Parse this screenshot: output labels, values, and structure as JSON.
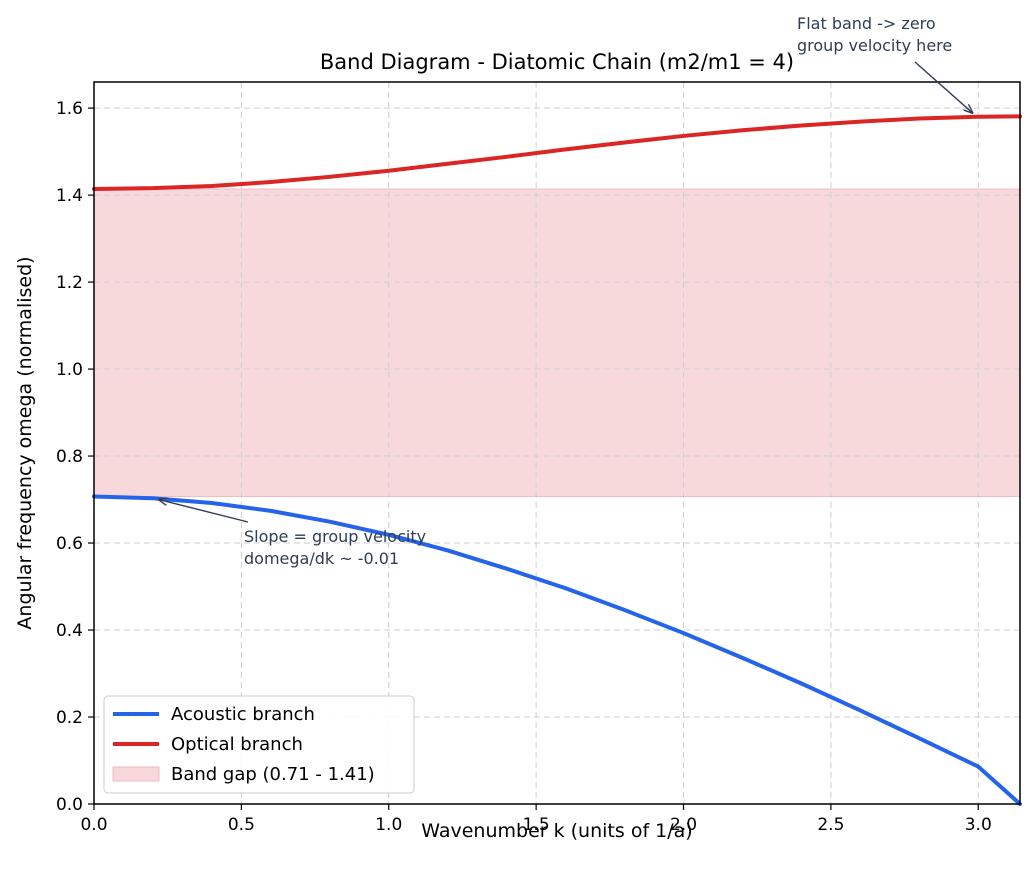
{
  "chart_data": {
    "type": "line",
    "title": "Band Diagram - Diatomic Chain  (m2/m1 = 4)",
    "xlabel": "Wavenumber k  (units of 1/a)",
    "ylabel": "Angular frequency omega  (normalised)",
    "xlim": [
      0,
      3.1416
    ],
    "ylim": [
      0,
      1.66
    ],
    "xticks": [
      "0.0",
      "0.5",
      "1.0",
      "1.5",
      "2.0",
      "2.5",
      "3.0"
    ],
    "yticks": [
      "0.0",
      "0.2",
      "0.4",
      "0.6",
      "0.8",
      "1.0",
      "1.2",
      "1.4",
      "1.6"
    ],
    "grid": true,
    "legend_position": "lower-left",
    "series": [
      {
        "name": "Acoustic branch",
        "color": "#2563eb",
        "x": [
          0.0,
          0.2,
          0.4,
          0.6,
          0.8,
          1.0,
          1.2,
          1.4,
          1.6,
          1.8,
          2.0,
          2.2,
          2.4,
          2.6,
          2.8,
          3.0,
          3.1416
        ],
        "y": [
          0.707,
          0.703,
          0.692,
          0.674,
          0.649,
          0.619,
          0.583,
          0.541,
          0.496,
          0.446,
          0.393,
          0.336,
          0.277,
          0.215,
          0.151,
          0.086,
          0.0
        ]
      },
      {
        "name": "Optical branch",
        "color": "#dc2626",
        "x": [
          0.0,
          0.2,
          0.4,
          0.6,
          0.8,
          1.0,
          1.2,
          1.4,
          1.6,
          1.8,
          2.0,
          2.2,
          2.4,
          2.6,
          2.8,
          3.0,
          3.1416
        ],
        "y": [
          1.414,
          1.416,
          1.421,
          1.43,
          1.442,
          1.456,
          1.472,
          1.488,
          1.505,
          1.521,
          1.536,
          1.549,
          1.56,
          1.569,
          1.576,
          1.58,
          1.581
        ]
      }
    ],
    "band_gap": {
      "name": "Band gap (0.71 - 1.41)",
      "y0": 0.707,
      "y1": 1.414,
      "color": "#f8d7da"
    },
    "annotations": [
      {
        "lines": [
          "Flat band -> zero",
          "group velocity here"
        ],
        "point": [
          2.98,
          1.58
        ]
      },
      {
        "lines": [
          "Slope = group velocity",
          "domega/dk ~ -0.01"
        ],
        "point": [
          0.22,
          0.7
        ]
      }
    ]
  }
}
